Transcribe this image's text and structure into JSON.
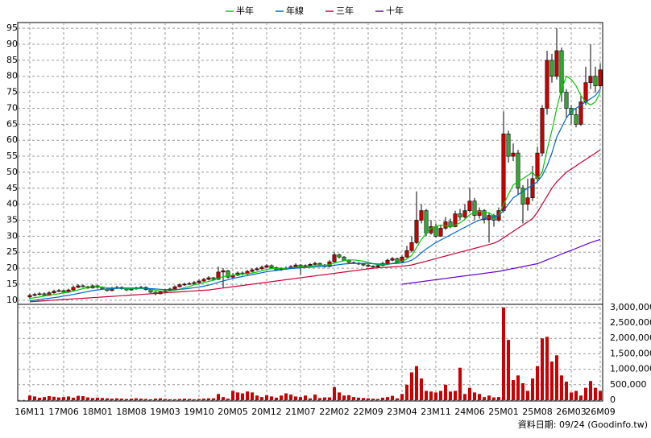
{
  "chart_data": {
    "type": "candlestick",
    "categories": [
      "16M11",
      null,
      null,
      null,
      null,
      null,
      null,
      "17M06",
      null,
      null,
      null,
      null,
      null,
      null,
      "18M01",
      null,
      null,
      null,
      null,
      null,
      null,
      "18M08",
      null,
      null,
      null,
      null,
      null,
      null,
      "19M03",
      null,
      null,
      null,
      null,
      null,
      null,
      "19M10",
      null,
      null,
      null,
      null,
      null,
      null,
      "20M05",
      null,
      null,
      null,
      null,
      null,
      null,
      "20M12",
      null,
      null,
      null,
      null,
      null,
      null,
      "21M07",
      null,
      null,
      null,
      null,
      null,
      null,
      "22M02",
      null,
      null,
      null,
      null,
      null,
      null,
      "22M09",
      null,
      null,
      null,
      null,
      null,
      null,
      "23M04",
      null,
      null,
      null,
      null,
      null,
      null,
      "23M11",
      null,
      null,
      null,
      null,
      null,
      null,
      "24M06",
      null,
      null,
      null,
      null,
      null,
      null,
      "25M01",
      null,
      null,
      null,
      null,
      null,
      null,
      "25M08",
      null,
      null,
      null,
      null,
      null,
      null,
      "26M03",
      null,
      null,
      null,
      null,
      null,
      "26M09"
    ],
    "open": [
      11,
      11.5,
      11.8,
      12,
      11.5,
      12.3,
      12.8,
      13,
      12.5,
      13.2,
      14,
      14.5,
      14.2,
      13.8,
      14.5,
      14,
      13.5,
      13,
      13.8,
      14,
      13.6,
      13.2,
      13.5,
      13.9,
      14,
      13.3,
      12.5,
      12,
      12.6,
      13,
      13.5,
      14.2,
      14.8,
      15,
      15.2,
      15.5,
      16,
      16.5,
      17,
      16.5,
      18.8,
      19.2,
      17.2,
      17.8,
      18.5,
      18.2,
      19,
      19.5,
      19.8,
      20.3,
      20.8,
      20.2,
      19.5,
      19.8,
      20,
      20.5,
      21,
      20.4,
      20.8,
      21.2,
      21.5,
      21,
      20.5,
      22,
      24.2,
      23.5,
      22.5,
      21.8,
      21.6,
      21.3,
      21,
      20.6,
      20.4,
      20.8,
      21.5,
      22.5,
      23,
      22,
      23.5,
      25.5,
      28,
      35,
      38,
      31,
      33,
      30,
      32.5,
      34.5,
      33,
      37,
      36,
      38,
      41,
      36.5,
      38,
      35.2,
      36.5,
      35,
      38,
      62,
      55,
      56,
      45,
      40,
      42,
      48,
      56,
      70,
      85,
      80,
      88,
      75,
      70,
      68,
      65,
      72,
      78,
      80,
      77
    ],
    "high": [
      12,
      12.3,
      12.5,
      12.4,
      12.8,
      13.3,
      13.5,
      13.3,
      13.6,
      14.6,
      15,
      14.9,
      14.5,
      14.9,
      14.8,
      14.3,
      13.8,
      14.2,
      14.5,
      14.3,
      13.9,
      13.9,
      14.2,
      14.5,
      14.3,
      13.6,
      12.8,
      13,
      13.5,
      13.9,
      14.6,
      15.2,
      15.5,
      15.7,
      16,
      16.5,
      17,
      17.5,
      17.3,
      20.5,
      20,
      19.5,
      18.5,
      19,
      19,
      19.5,
      20,
      20.3,
      20.8,
      21.3,
      21.2,
      20.5,
      20.3,
      20.6,
      21,
      21.5,
      21.3,
      21.2,
      21.6,
      22,
      21.8,
      21.3,
      22.5,
      25,
      24.6,
      23.8,
      22.8,
      22.1,
      21.9,
      21.6,
      21.3,
      20.9,
      21.2,
      22,
      23,
      23.5,
      23.3,
      24,
      27,
      30,
      44,
      40,
      38.5,
      35,
      34,
      33.5,
      36,
      35.5,
      38,
      38.5,
      40,
      45,
      42,
      39,
      38.5,
      37.5,
      37,
      39,
      69,
      63,
      59,
      57,
      46,
      48,
      52,
      58,
      71,
      88,
      87,
      95,
      89,
      76,
      71,
      70,
      74,
      83,
      90,
      83,
      84
    ],
    "low": [
      10.5,
      11.2,
      11.5,
      11.2,
      11.3,
      12,
      12.5,
      12.2,
      12.3,
      13,
      13.8,
      14,
      13.5,
      13.6,
      13.7,
      13.2,
      12.7,
      12.8,
      13.5,
      13.3,
      12.9,
      13,
      13.3,
      13.6,
      13,
      12.2,
      11.5,
      11.8,
      12.4,
      12.8,
      13.3,
      14,
      14.5,
      14.8,
      15,
      15.2,
      15.7,
      16.2,
      16.2,
      16.3,
      14,
      16.8,
      16.8,
      17.5,
      17.8,
      17.9,
      18.7,
      19.2,
      19.5,
      20,
      19.8,
      19.2,
      19.2,
      19.5,
      19.7,
      20.2,
      18,
      20,
      20.5,
      20.9,
      20.6,
      20.2,
      20.3,
      21.8,
      23,
      22.2,
      21.5,
      21.3,
      21,
      20.6,
      20.3,
      20,
      20.2,
      20.6,
      21.3,
      22.2,
      21.5,
      21.8,
      23.2,
      25,
      27.5,
      34,
      30,
      30.5,
      29.5,
      29.8,
      32,
      32.5,
      32.8,
      35,
      35.5,
      37.5,
      35,
      35.5,
      34,
      28,
      33,
      34.5,
      37.5,
      53,
      53.5,
      43,
      34,
      38,
      41,
      47,
      55,
      68,
      78,
      79,
      72,
      67,
      65,
      64,
      64.5,
      71,
      76,
      75,
      76
    ],
    "close": [
      11.5,
      11.8,
      12,
      11.5,
      12.3,
      12.8,
      13,
      12.5,
      13.2,
      14,
      14.5,
      14.2,
      13.8,
      14.5,
      14,
      13.5,
      13,
      13.8,
      14,
      13.6,
      13.2,
      13.5,
      13.9,
      14,
      13.3,
      12.5,
      12,
      12.6,
      13,
      13.5,
      14.2,
      14.8,
      15,
      15.2,
      15.5,
      16,
      16.5,
      17,
      16.5,
      18.8,
      19.2,
      17.2,
      17.8,
      18.5,
      18.2,
      19,
      19.5,
      19.8,
      20.3,
      20.8,
      20.2,
      19.5,
      19.8,
      20,
      20.5,
      21,
      20.4,
      20.8,
      21.2,
      21.5,
      21,
      20.5,
      22,
      24.2,
      23.5,
      22.5,
      21.8,
      21.6,
      21.3,
      21,
      20.6,
      20.4,
      20.8,
      21.5,
      22.5,
      23,
      22,
      23.5,
      25.5,
      28,
      35,
      38,
      31,
      33,
      30,
      32.5,
      34.5,
      33,
      37,
      36,
      38,
      41,
      36.5,
      38,
      35.2,
      36.5,
      35,
      38,
      62,
      55,
      56,
      45,
      40,
      42,
      48,
      56,
      70,
      85,
      80,
      88,
      75,
      70,
      68,
      65,
      72,
      78,
      80,
      77,
      82
    ],
    "up_color": "#cc0000",
    "down_color": "#33aa33",
    "series": [
      {
        "name": "半年",
        "color": "#00cc00",
        "values": [
          10.5,
          10.8,
          11,
          11.3,
          11.5,
          11.8,
          12,
          12.3,
          12.5,
          12.8,
          13.2,
          13.6,
          13.9,
          14.1,
          14.2,
          14.1,
          13.9,
          13.8,
          13.8,
          13.7,
          13.6,
          13.6,
          13.6,
          13.7,
          13.6,
          13.4,
          13.1,
          12.9,
          12.8,
          12.9,
          13.1,
          13.4,
          13.9,
          14.3,
          14.8,
          15.1,
          15.5,
          15.9,
          16.2,
          16.8,
          17.4,
          17.6,
          17.8,
          18,
          18.2,
          18.3,
          18.5,
          18.8,
          19.2,
          19.6,
          19.9,
          20,
          20,
          20,
          20.1,
          20.3,
          20.3,
          20.4,
          20.6,
          20.8,
          20.9,
          20.9,
          21.1,
          21.6,
          22,
          22.4,
          22.6,
          22.6,
          22.4,
          22.2,
          21.8,
          21.4,
          21.1,
          21,
          21.1,
          21.5,
          21.8,
          22.2,
          22.9,
          24,
          26.5,
          29,
          31,
          32.5,
          33,
          33.5,
          33.3,
          32.8,
          33.5,
          34.2,
          35.3,
          36.7,
          37.5,
          37.8,
          37.5,
          37.3,
          36.4,
          36.5,
          40,
          43,
          46,
          47,
          48,
          49,
          50,
          48,
          50,
          57,
          63,
          70,
          76,
          80,
          79,
          77,
          74,
          72,
          71,
          72,
          75
        ]
      },
      {
        "name": "年線",
        "color": "#0066cc",
        "values": [
          9.8,
          10,
          10.2,
          10.4,
          10.6,
          10.8,
          11,
          11.3,
          11.5,
          11.8,
          12.1,
          12.4,
          12.7,
          13,
          13.2,
          13.4,
          13.5,
          13.6,
          13.7,
          13.8,
          13.8,
          13.8,
          13.8,
          13.8,
          13.7,
          13.6,
          13.5,
          13.4,
          13.3,
          13.3,
          13.3,
          13.4,
          13.5,
          13.7,
          13.9,
          14.1,
          14.4,
          14.7,
          15.1,
          15.6,
          16,
          16.4,
          16.8,
          17.1,
          17.4,
          17.7,
          18,
          18.3,
          18.6,
          18.9,
          19.1,
          19.3,
          19.5,
          19.7,
          19.9,
          20,
          20.1,
          20.2,
          20.3,
          20.4,
          20.5,
          20.6,
          20.7,
          20.9,
          21.1,
          21.3,
          21.4,
          21.5,
          21.5,
          21.5,
          21.5,
          21.4,
          21.3,
          21.3,
          21.3,
          21.4,
          21.5,
          21.7,
          22,
          22.5,
          23.5,
          24.8,
          26,
          27,
          28,
          28.8,
          29.6,
          30.4,
          31.2,
          32,
          32.8,
          33.6,
          34.4,
          35,
          35.5,
          35.8,
          36,
          36.5,
          38,
          40,
          42,
          43,
          44,
          45,
          46,
          47,
          49,
          52,
          56,
          61,
          64,
          67,
          69,
          70,
          71,
          72,
          73,
          74,
          76
        ]
      },
      {
        "name": "三年",
        "color": "#cc0033",
        "values": [
          9.5,
          9.6,
          9.7,
          9.8,
          9.9,
          10,
          10.1,
          10.2,
          10.3,
          10.4,
          10.5,
          10.6,
          10.7,
          10.8,
          10.9,
          11,
          11.1,
          11.2,
          11.3,
          11.4,
          11.5,
          11.6,
          11.7,
          11.8,
          11.9,
          12,
          12.1,
          12.2,
          12.3,
          12.4,
          12.5,
          12.6,
          12.7,
          12.8,
          12.9,
          13,
          13.1,
          13.2,
          13.4,
          13.6,
          13.8,
          14,
          14.2,
          14.4,
          14.6,
          14.8,
          15,
          15.2,
          15.4,
          15.6,
          15.8,
          16,
          16.2,
          16.4,
          16.6,
          16.8,
          17,
          17.2,
          17.4,
          17.6,
          17.8,
          18,
          18.2,
          18.4,
          18.6,
          18.8,
          19,
          19.2,
          19.4,
          19.6,
          19.8,
          20,
          20.1,
          20.2,
          20.3,
          20.4,
          20.5,
          20.6,
          20.8,
          21,
          21.4,
          21.8,
          22.2,
          22.6,
          23,
          23.4,
          23.8,
          24.2,
          24.6,
          25,
          25.4,
          25.8,
          26.2,
          26.6,
          27,
          27.4,
          27.8,
          28.5,
          29.5,
          30.5,
          31.5,
          32.5,
          33.5,
          34.5,
          35.5,
          37.5,
          40,
          42.5,
          45,
          47,
          48.5,
          50,
          51,
          52,
          53,
          54,
          55,
          56,
          57
        ]
      },
      {
        "name": "十年",
        "color": "#6600cc",
        "values": [
          null,
          null,
          null,
          null,
          null,
          null,
          null,
          null,
          null,
          null,
          null,
          null,
          null,
          null,
          null,
          null,
          null,
          null,
          null,
          null,
          null,
          null,
          null,
          null,
          null,
          null,
          null,
          null,
          null,
          null,
          null,
          null,
          null,
          null,
          null,
          null,
          null,
          null,
          null,
          null,
          null,
          null,
          null,
          null,
          null,
          null,
          null,
          null,
          null,
          null,
          null,
          null,
          null,
          null,
          null,
          null,
          null,
          null,
          null,
          null,
          null,
          null,
          null,
          null,
          null,
          null,
          null,
          null,
          null,
          null,
          null,
          null,
          null,
          null,
          null,
          null,
          null,
          15,
          15.2,
          15.4,
          15.6,
          15.8,
          16,
          16.2,
          16.4,
          16.6,
          16.8,
          17,
          17.2,
          17.4,
          17.6,
          17.8,
          18,
          18.2,
          18.4,
          18.6,
          18.8,
          19,
          19.3,
          19.6,
          19.9,
          20.2,
          20.5,
          20.8,
          21.1,
          21.4,
          22,
          22.6,
          23.2,
          23.8,
          24.4,
          25,
          25.6,
          26.2,
          26.8,
          27.4,
          28,
          28.5,
          29
        ]
      }
    ],
    "ylim": [
      8.7,
      96.8
    ],
    "yticks": [
      10,
      15,
      20,
      25,
      30,
      35,
      40,
      45,
      50,
      55,
      60,
      65,
      70,
      75,
      80,
      85,
      90,
      95
    ],
    "volume": {
      "color": "#cc0000",
      "y2lim": [
        0,
        3100000
      ],
      "y2ticks": [
        0,
        {
          "value": 500000,
          "label": "500,000"
        },
        {
          "value": 1000000,
          "label": "1,000,000"
        },
        {
          "value": 1500000,
          "label": "1,500,000"
        },
        {
          "value": 2000000,
          "label": "2,000,000"
        },
        {
          "value": 2500000,
          "label": "2,500,000"
        },
        {
          "value": 3000000,
          "label": "3,000,000"
        }
      ],
      "values": [
        150000,
        120000,
        80000,
        100000,
        130000,
        110000,
        90000,
        100000,
        120000,
        80000,
        140000,
        130000,
        90000,
        70000,
        80000,
        70000,
        60000,
        50000,
        60000,
        50000,
        40000,
        50000,
        60000,
        50000,
        40000,
        30000,
        50000,
        60000,
        40000,
        30000,
        30000,
        40000,
        50000,
        40000,
        30000,
        40000,
        50000,
        60000,
        60000,
        200000,
        100000,
        50000,
        300000,
        250000,
        220000,
        280000,
        250000,
        150000,
        100000,
        160000,
        120000,
        80000,
        150000,
        220000,
        180000,
        120000,
        100000,
        150000,
        60000,
        180000,
        70000,
        90000,
        90000,
        420000,
        250000,
        150000,
        160000,
        100000,
        80000,
        70000,
        60000,
        50000,
        40000,
        80000,
        100000,
        140000,
        60000,
        200000,
        500000,
        900000,
        1100000,
        700000,
        300000,
        280000,
        250000,
        300000,
        500000,
        280000,
        300000,
        1050000,
        200000,
        400000,
        250000,
        200000,
        100000,
        150000,
        90000,
        100000,
        3000000,
        1950000,
        650000,
        800000,
        550000,
        300000,
        700000,
        1100000,
        2000000,
        2050000,
        1250000,
        1450000,
        800000,
        600000,
        250000,
        300000,
        150000,
        400000,
        620000,
        400000,
        300000
      ]
    },
    "grid": true,
    "footer": "資料日期: 09/24  (Goodinfo.tw)"
  }
}
